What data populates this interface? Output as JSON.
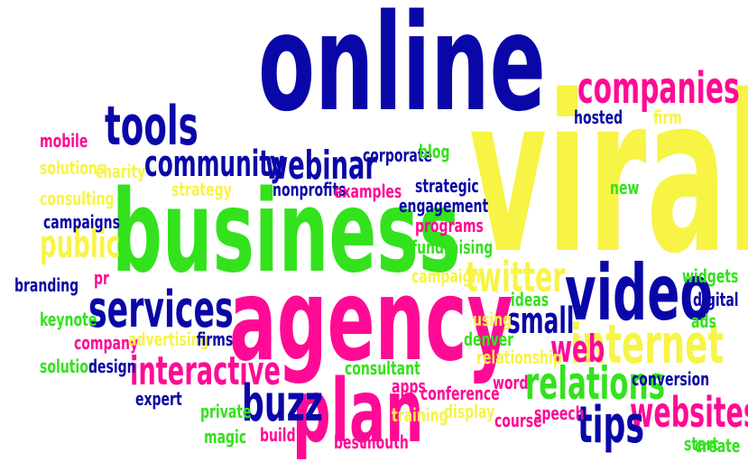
{
  "words": {
    "online": "online",
    "viral": "viral",
    "business": "business",
    "agency": "agency",
    "plan": "plan",
    "video": "video",
    "internet": "internet",
    "companies": "companies",
    "tools": "tools",
    "community": "community",
    "webinar": "webinar",
    "services": "services",
    "interactive": "interactive",
    "twitter": "twitter",
    "public": "public",
    "websites": "websites",
    "relations": "relations",
    "tips": "tips",
    "buzz": "buzz",
    "small": "small",
    "web": "web",
    "hosted": "hosted",
    "firm": "firm",
    "mobile": "mobile",
    "solutions": "solutions",
    "charity": "charity",
    "corporate": "corporate",
    "blog": "blog",
    "strategy": "strategy",
    "nonprofits": "nonprofits",
    "examples": "examples",
    "strategic": "strategic",
    "consulting": "consulting",
    "engagement": "engagement",
    "new": "new",
    "campaigns": "campaigns",
    "programs": "programs",
    "fundraising": "fundraising",
    "branding": "branding",
    "pr": "pr",
    "campaign": "campaign",
    "widgets": "widgets",
    "ideas": "ideas",
    "digital": "digital",
    "keynote": "keynote",
    "using": "using",
    "ads": "ads",
    "company": "company",
    "advertising": "advertising",
    "firms": "firms",
    "denver": "denver",
    "relationship": "relationship",
    "solution": "solution",
    "design": "design",
    "consultant": "consultant",
    "conversion": "conversion",
    "expert": "expert",
    "word": "word",
    "apps": "apps",
    "conference": "conference",
    "private": "private",
    "training": "training",
    "display": "display",
    "speech": "speech",
    "course": "course",
    "magic": "magic",
    "build": "build",
    "best": "best",
    "mouth": "mouth",
    "start": "start",
    "create": "create"
  },
  "colors": {
    "blue": "#0a07a8",
    "pink": "#ff0a95",
    "green": "#33e21c",
    "yellow": "#f7f446"
  }
}
